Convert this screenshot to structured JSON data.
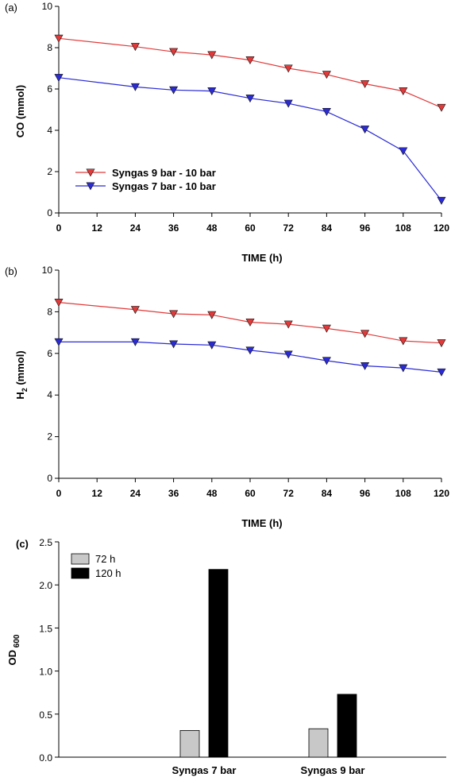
{
  "chart_data": [
    {
      "panel": "(a)",
      "type": "line",
      "ylabel_parts": [
        "CO (mmol)"
      ],
      "xlabel": "TIME (h)",
      "xlim": [
        0,
        120
      ],
      "ylim": [
        0,
        10
      ],
      "xticks": [
        "0",
        "12",
        "24",
        "36",
        "48",
        "60",
        "72",
        "84",
        "96",
        "108",
        "120"
      ],
      "yticks": [
        "0",
        "2",
        "4",
        "6",
        "8",
        "10"
      ],
      "series": [
        {
          "name": "Syngas 9 bar - 10 bar",
          "color": "#e23a3a",
          "x": [
            0,
            24,
            36,
            48,
            60,
            72,
            84,
            96,
            108,
            120
          ],
          "y": [
            8.45,
            8.05,
            7.8,
            7.65,
            7.4,
            7.0,
            6.7,
            6.25,
            5.9,
            5.1
          ]
        },
        {
          "name": "Syngas 7 bar - 10 bar",
          "color": "#2b2bd6",
          "x": [
            0,
            24,
            36,
            48,
            60,
            72,
            84,
            96,
            108,
            120
          ],
          "y": [
            6.55,
            6.1,
            5.95,
            5.9,
            5.55,
            5.3,
            4.9,
            4.05,
            3.0,
            0.6
          ]
        }
      ]
    },
    {
      "panel": "(b)",
      "type": "line",
      "ylabel_parts": [
        "H",
        "2",
        " (mmol)"
      ],
      "xlabel": "TIME (h)",
      "xlim": [
        0,
        120
      ],
      "ylim": [
        0,
        10
      ],
      "xticks": [
        "0",
        "12",
        "24",
        "36",
        "48",
        "60",
        "72",
        "84",
        "96",
        "108",
        "120"
      ],
      "yticks": [
        "0",
        "2",
        "4",
        "6",
        "8",
        "10"
      ],
      "series": [
        {
          "color": "#e23a3a",
          "x": [
            0,
            24,
            36,
            48,
            60,
            72,
            84,
            96,
            108,
            120
          ],
          "y": [
            8.45,
            8.1,
            7.9,
            7.85,
            7.5,
            7.4,
            7.2,
            6.95,
            6.6,
            6.5
          ]
        },
        {
          "color": "#2b2bd6",
          "x": [
            0,
            24,
            36,
            48,
            60,
            72,
            84,
            96,
            108,
            120
          ],
          "y": [
            6.55,
            6.55,
            6.45,
            6.4,
            6.15,
            5.95,
            5.65,
            5.4,
            5.3,
            5.1
          ]
        }
      ]
    },
    {
      "panel": "(c)",
      "type": "bar",
      "ylabel_parts": [
        "OD",
        " 600"
      ],
      "ylim": [
        0,
        2.5
      ],
      "yticks": [
        "0.0",
        "0.5",
        "1.0",
        "1.5",
        "2.0",
        "2.5"
      ],
      "categories": [
        "Syngas 7 bar",
        "Syngas 9 bar"
      ],
      "series": [
        {
          "name": "72 h",
          "color": "#c8c8c8",
          "values": [
            0.31,
            0.33
          ]
        },
        {
          "name": "120 h",
          "color": "#000000",
          "values": [
            2.18,
            0.73
          ]
        }
      ]
    }
  ]
}
